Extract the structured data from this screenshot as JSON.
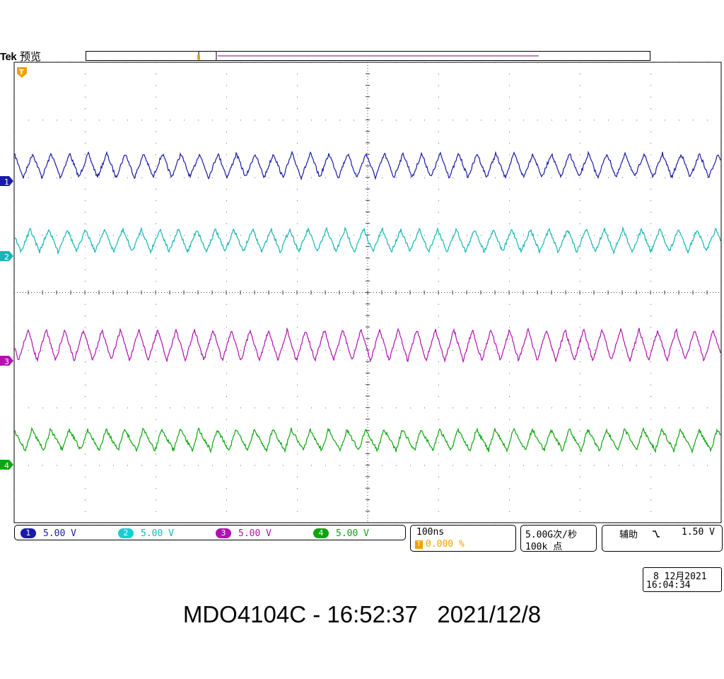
{
  "header": {
    "brand": "Tek",
    "mode": "预览"
  },
  "colors": {
    "ch1": "#1a1aa8",
    "ch2": "#15b5b5",
    "ch3": "#b012b0",
    "ch4": "#0ea50e",
    "trigger": "#f0a000",
    "grid": "#606060"
  },
  "markers": {
    "trigger": "T",
    "ch1": "1",
    "ch2": "2",
    "ch3": "3",
    "ch4": "4"
  },
  "channels": [
    {
      "num": "1",
      "scale": "5.00 V"
    },
    {
      "num": "2",
      "scale": "5.00 V"
    },
    {
      "num": "3",
      "scale": "5.00 V"
    },
    {
      "num": "4",
      "scale": "5.00 V"
    }
  ],
  "timebase": {
    "scale": "100ns",
    "trigger_pos": "0.000 %"
  },
  "acquisition": {
    "sample_rate": "5.00G次/秒",
    "record_length": "100k 点"
  },
  "trigger": {
    "source": "辅助",
    "slope_icon": "falling-edge-icon",
    "level": "1.50 V"
  },
  "datetime": {
    "date": "8 12月2021",
    "time": "16:04:34"
  },
  "caption": "MDO4104C - 16:52:37   2021/12/8"
}
